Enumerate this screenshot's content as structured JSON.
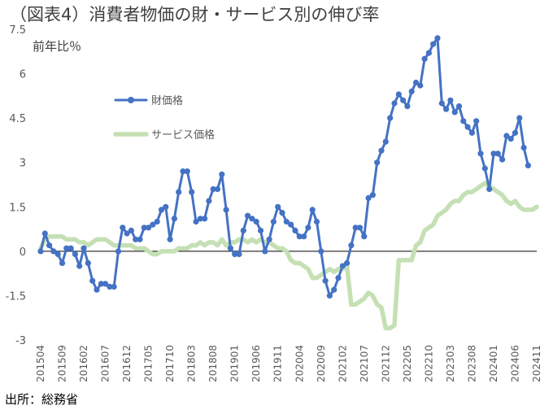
{
  "title": "（図表4）消費者物価の財・サービス別の伸び率",
  "y_unit": "前年比％",
  "source": "出所：総務省",
  "colors": {
    "goods": "#4472C4",
    "services": "#C5E0B4",
    "zero": "#000000"
  },
  "chart_data": {
    "type": "line",
    "ylim": [
      -3,
      7.5
    ],
    "yticks": [
      "7.5",
      "6",
      "4.5",
      "3",
      "1.5",
      "0",
      "-1.5",
      "-3"
    ],
    "ytick_values": [
      7.5,
      6,
      4.5,
      3,
      1.5,
      0,
      -1.5,
      -3
    ],
    "x_start": "2015-04",
    "x_count": 116,
    "xtick_labels": [
      "201504",
      "201509",
      "201602",
      "201607",
      "201612",
      "201705",
      "201710",
      "201803",
      "201808",
      "201901",
      "201906",
      "201911",
      "202004",
      "202009",
      "202102",
      "202107",
      "202112",
      "202205",
      "202210",
      "202303",
      "202308",
      "202401",
      "202406",
      "202411"
    ],
    "legend_position": "upper-left",
    "series": [
      {
        "name": "財価格",
        "color": "#4472C4",
        "marker": "circle",
        "values": [
          0.0,
          0.6,
          0.2,
          0.0,
          -0.1,
          -0.4,
          0.1,
          0.1,
          -0.1,
          -0.5,
          0.1,
          -0.4,
          -1.0,
          -1.3,
          -1.1,
          -1.1,
          -1.2,
          -1.2,
          0.0,
          0.8,
          0.6,
          0.7,
          0.4,
          0.4,
          0.8,
          0.8,
          0.9,
          1.0,
          1.4,
          1.5,
          0.4,
          1.1,
          2.0,
          2.7,
          2.7,
          2.0,
          1.0,
          1.1,
          1.1,
          1.7,
          2.1,
          2.1,
          2.6,
          1.4,
          0.1,
          -0.1,
          -0.1,
          0.7,
          1.2,
          1.1,
          1.0,
          0.7,
          0.0,
          0.4,
          1.0,
          1.5,
          1.3,
          1.0,
          0.9,
          0.7,
          0.5,
          0.5,
          0.8,
          1.4,
          1.0,
          0.0,
          -1.0,
          -1.5,
          -1.3,
          -0.9,
          -0.5,
          -0.4,
          0.2,
          0.8,
          0.8,
          0.5,
          1.8,
          1.9,
          3.0,
          3.4,
          3.7,
          4.5,
          5.0,
          5.3,
          5.1,
          4.9,
          5.4,
          5.7,
          5.6,
          6.5,
          6.7,
          7.0,
          7.2,
          5.0,
          4.8,
          5.1,
          4.7,
          4.9,
          4.4,
          4.2,
          4.0,
          4.4,
          3.3,
          2.8,
          2.1,
          3.3,
          3.3,
          3.1,
          3.9,
          3.8,
          4.0,
          4.5,
          3.5,
          2.9
        ]
      },
      {
        "name": "サービス価格",
        "color": "#C5E0B4",
        "marker": "none",
        "values": [
          0.1,
          0.4,
          0.5,
          0.5,
          0.5,
          0.5,
          0.4,
          0.4,
          0.4,
          0.3,
          0.3,
          0.2,
          0.3,
          0.4,
          0.4,
          0.4,
          0.3,
          0.2,
          0.2,
          0.2,
          0.2,
          0.2,
          0.1,
          0.1,
          0.1,
          0.0,
          -0.1,
          -0.1,
          0.0,
          0.0,
          0.0,
          0.0,
          0.1,
          0.1,
          0.1,
          0.2,
          0.2,
          0.3,
          0.2,
          0.3,
          0.3,
          0.2,
          0.4,
          0.2,
          0.3,
          0.3,
          0.4,
          0.4,
          0.3,
          0.4,
          0.3,
          0.4,
          0.3,
          0.3,
          0.2,
          0.1,
          0.1,
          0.0,
          -0.3,
          -0.4,
          -0.4,
          -0.5,
          -0.6,
          -0.9,
          -0.9,
          -0.8,
          -0.7,
          -0.6,
          -0.7,
          -0.6,
          -0.6,
          -0.5,
          -1.8,
          -1.8,
          -1.7,
          -1.6,
          -1.4,
          -1.5,
          -1.8,
          -1.9,
          -2.6,
          -2.6,
          -2.5,
          -0.3,
          -0.3,
          -0.3,
          -0.3,
          0.2,
          0.3,
          0.7,
          0.8,
          0.9,
          1.2,
          1.3,
          1.4,
          1.6,
          1.7,
          1.7,
          1.9,
          2.0,
          2.0,
          2.1,
          2.2,
          2.3,
          2.2,
          2.1,
          2.0,
          1.9,
          1.7,
          1.6,
          1.7,
          1.5,
          1.4,
          1.4,
          1.4,
          1.5
        ]
      }
    ]
  }
}
